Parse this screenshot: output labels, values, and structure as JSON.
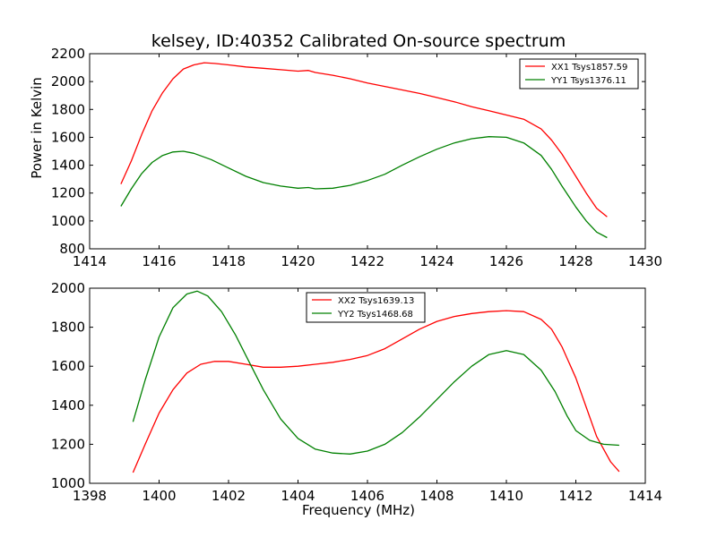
{
  "figure": {
    "title": "kelsey, ID:40352 Calibrated On-source spectrum",
    "xlabel": "Frequency (MHz)",
    "ylabel": "Power in Kelvin"
  },
  "chart_data": [
    {
      "type": "line",
      "title": "kelsey, ID:40352 Calibrated On-source spectrum",
      "xlabel": "",
      "ylabel": "Power in Kelvin",
      "xlim": [
        1414,
        1430
      ],
      "ylim": [
        800,
        2200
      ],
      "xticks": [
        1414,
        1416,
        1418,
        1420,
        1422,
        1424,
        1426,
        1428,
        1430
      ],
      "yticks": [
        800,
        1000,
        1200,
        1400,
        1600,
        1800,
        2000,
        2200
      ],
      "grid": false,
      "legend_position": "top-right",
      "series": [
        {
          "name": "XX1 Tsys1857.59",
          "color": "#ff0000",
          "x": [
            1414.9,
            1415.2,
            1415.5,
            1415.8,
            1416.1,
            1416.4,
            1416.7,
            1417.0,
            1417.3,
            1417.6,
            1418.0,
            1418.5,
            1419.0,
            1419.5,
            1420.0,
            1420.3,
            1420.5,
            1421.0,
            1421.5,
            1422.0,
            1422.5,
            1423.0,
            1423.5,
            1424.0,
            1424.5,
            1425.0,
            1425.5,
            1426.0,
            1426.5,
            1427.0,
            1427.3,
            1427.6,
            1428.0,
            1428.3,
            1428.6,
            1428.9
          ],
          "y": [
            1265,
            1430,
            1620,
            1790,
            1920,
            2020,
            2090,
            2120,
            2135,
            2130,
            2120,
            2105,
            2095,
            2085,
            2075,
            2080,
            2065,
            2045,
            2020,
            1990,
            1965,
            1940,
            1915,
            1885,
            1855,
            1820,
            1790,
            1760,
            1730,
            1660,
            1580,
            1480,
            1320,
            1200,
            1090,
            1030
          ]
        },
        {
          "name": "YY1 Tsys1376.11",
          "color": "#008000",
          "x": [
            1414.9,
            1415.2,
            1415.5,
            1415.8,
            1416.1,
            1416.4,
            1416.7,
            1417.0,
            1417.5,
            1418.0,
            1418.5,
            1419.0,
            1419.5,
            1420.0,
            1420.3,
            1420.5,
            1421.0,
            1421.5,
            1422.0,
            1422.5,
            1423.0,
            1423.5,
            1424.0,
            1424.5,
            1425.0,
            1425.5,
            1426.0,
            1426.5,
            1427.0,
            1427.3,
            1427.6,
            1428.0,
            1428.3,
            1428.6,
            1428.9
          ],
          "y": [
            1105,
            1230,
            1340,
            1420,
            1470,
            1495,
            1500,
            1485,
            1440,
            1380,
            1320,
            1275,
            1250,
            1235,
            1240,
            1230,
            1235,
            1255,
            1290,
            1335,
            1400,
            1460,
            1515,
            1560,
            1590,
            1605,
            1600,
            1560,
            1470,
            1370,
            1250,
            1100,
            1000,
            920,
            880
          ]
        }
      ]
    },
    {
      "type": "line",
      "title": "",
      "xlabel": "Frequency (MHz)",
      "ylabel": "",
      "xlim": [
        1398,
        1414
      ],
      "ylim": [
        1000,
        2000
      ],
      "xticks": [
        1398,
        1400,
        1402,
        1404,
        1406,
        1408,
        1410,
        1412,
        1414
      ],
      "yticks": [
        1000,
        1200,
        1400,
        1600,
        1800,
        2000
      ],
      "grid": false,
      "legend_position": "top-center",
      "series": [
        {
          "name": "XX2 Tsys1639.13",
          "color": "#ff0000",
          "x": [
            1399.25,
            1399.6,
            1400.0,
            1400.4,
            1400.8,
            1401.2,
            1401.6,
            1402.0,
            1402.5,
            1403.0,
            1403.5,
            1404.0,
            1404.5,
            1405.0,
            1405.5,
            1406.0,
            1406.5,
            1407.0,
            1407.5,
            1408.0,
            1408.5,
            1409.0,
            1409.5,
            1410.0,
            1410.5,
            1411.0,
            1411.3,
            1411.6,
            1412.0,
            1412.3,
            1412.6,
            1413.0,
            1413.25
          ],
          "y": [
            1055,
            1200,
            1360,
            1480,
            1565,
            1610,
            1625,
            1625,
            1610,
            1595,
            1595,
            1600,
            1610,
            1620,
            1635,
            1655,
            1690,
            1740,
            1790,
            1830,
            1855,
            1870,
            1880,
            1885,
            1880,
            1840,
            1790,
            1700,
            1540,
            1390,
            1240,
            1110,
            1060
          ]
        },
        {
          "name": "YY2 Tsys1468.68",
          "color": "#008000",
          "x": [
            1399.25,
            1399.6,
            1400.0,
            1400.4,
            1400.8,
            1401.1,
            1401.4,
            1401.8,
            1402.2,
            1402.6,
            1403.0,
            1403.5,
            1404.0,
            1404.5,
            1405.0,
            1405.5,
            1406.0,
            1406.5,
            1407.0,
            1407.5,
            1408.0,
            1408.5,
            1409.0,
            1409.5,
            1410.0,
            1410.5,
            1411.0,
            1411.4,
            1411.75,
            1412.0,
            1412.4,
            1412.8,
            1413.25
          ],
          "y": [
            1315,
            1530,
            1750,
            1900,
            1970,
            1985,
            1960,
            1880,
            1760,
            1620,
            1480,
            1330,
            1230,
            1175,
            1155,
            1150,
            1165,
            1200,
            1260,
            1340,
            1430,
            1520,
            1600,
            1660,
            1680,
            1660,
            1580,
            1470,
            1345,
            1270,
            1220,
            1200,
            1195
          ]
        }
      ]
    }
  ]
}
